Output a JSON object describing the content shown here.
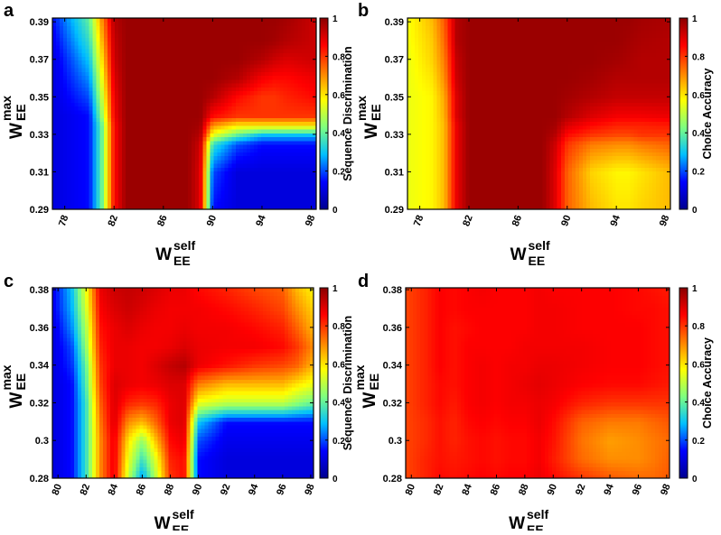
{
  "colorscale": {
    "name": "jet",
    "stops": [
      "#00008f",
      "#0000ff",
      "#00bfff",
      "#7fff7f",
      "#ffff00",
      "#ff8000",
      "#ff0000",
      "#8b0000"
    ]
  },
  "chart_data": [
    {
      "type": "heatmap",
      "panel_label": "a",
      "x_label_base": "W",
      "x_label_sup": "self",
      "x_label_sub": "EE",
      "y_label_base": "W",
      "y_label_sup": "max",
      "y_label_sub": "EE",
      "colorbar_label": "Sequence Discrimination",
      "xlim": [
        77,
        98.4
      ],
      "ylim": [
        0.29,
        0.392
      ],
      "x_ticks": [
        "78",
        "82",
        "86",
        "90",
        "94",
        "98"
      ],
      "y_ticks": [
        "0.29",
        "0.31",
        "0.33",
        "0.35",
        "0.37",
        "0.39"
      ],
      "clim": [
        0,
        1
      ],
      "colorbar_ticks": [
        "0",
        "0.2",
        "0.4",
        "0.6",
        "0.8",
        "1"
      ],
      "x": [
        77,
        80,
        81,
        82,
        83,
        88,
        89,
        90,
        92,
        94,
        95,
        96,
        98.4
      ],
      "y": [
        0.29,
        0.31,
        0.325,
        0.33,
        0.335,
        0.34,
        0.35,
        0.36,
        0.37,
        0.38,
        0.392
      ],
      "z": [
        [
          0.1,
          0.15,
          0.4,
          0.85,
          0.98,
          0.98,
          0.9,
          0.15,
          0.1,
          0.1,
          0.1,
          0.1,
          0.1
        ],
        [
          0.1,
          0.15,
          0.4,
          0.85,
          0.98,
          0.98,
          0.9,
          0.2,
          0.1,
          0.1,
          0.1,
          0.1,
          0.1
        ],
        [
          0.1,
          0.15,
          0.4,
          0.85,
          0.98,
          0.98,
          0.92,
          0.35,
          0.2,
          0.15,
          0.15,
          0.15,
          0.15
        ],
        [
          0.1,
          0.15,
          0.4,
          0.85,
          0.98,
          0.98,
          0.95,
          0.55,
          0.4,
          0.3,
          0.3,
          0.3,
          0.3
        ],
        [
          0.1,
          0.15,
          0.4,
          0.85,
          0.98,
          0.98,
          0.97,
          0.7,
          0.6,
          0.6,
          0.6,
          0.6,
          0.6
        ],
        [
          0.1,
          0.15,
          0.45,
          0.87,
          0.98,
          0.98,
          0.98,
          0.85,
          0.8,
          0.8,
          0.8,
          0.8,
          0.8
        ],
        [
          0.1,
          0.2,
          0.5,
          0.88,
          0.98,
          0.98,
          0.98,
          0.95,
          0.85,
          0.8,
          0.8,
          0.82,
          0.85
        ],
        [
          0.1,
          0.25,
          0.55,
          0.9,
          0.98,
          0.98,
          0.98,
          0.98,
          0.95,
          0.87,
          0.85,
          0.85,
          0.88
        ],
        [
          0.1,
          0.3,
          0.6,
          0.92,
          0.98,
          0.98,
          0.98,
          0.98,
          0.98,
          0.95,
          0.92,
          0.9,
          0.92
        ],
        [
          0.12,
          0.35,
          0.65,
          0.93,
          0.98,
          0.98,
          0.98,
          0.98,
          0.98,
          0.98,
          0.97,
          0.95,
          0.92
        ],
        [
          0.15,
          0.4,
          0.7,
          0.95,
          0.98,
          0.98,
          0.98,
          0.98,
          0.98,
          0.98,
          0.98,
          0.97,
          0.92
        ]
      ]
    },
    {
      "type": "heatmap",
      "panel_label": "b",
      "x_label_base": "W",
      "x_label_sup": "self",
      "x_label_sub": "EE",
      "y_label_base": "W",
      "y_label_sup": "max",
      "y_label_sub": "EE",
      "colorbar_label": "Choice Accuracy",
      "xlim": [
        77,
        98.4
      ],
      "ylim": [
        0.29,
        0.392
      ],
      "x_ticks": [
        "78",
        "82",
        "86",
        "90",
        "94",
        "98"
      ],
      "y_ticks": [
        "0.29",
        "0.31",
        "0.33",
        "0.35",
        "0.37",
        "0.39"
      ],
      "clim": [
        0,
        1
      ],
      "colorbar_ticks": [
        "0",
        "0.2",
        "0.4",
        "0.6",
        "0.8",
        "1"
      ],
      "x": [
        77,
        79,
        80,
        81,
        82,
        88,
        89,
        90,
        92,
        94,
        95,
        96,
        98.4
      ],
      "y": [
        0.29,
        0.31,
        0.325,
        0.33,
        0.335,
        0.34,
        0.35,
        0.36,
        0.37,
        0.38,
        0.392
      ],
      "z": [
        [
          0.55,
          0.58,
          0.65,
          0.88,
          0.98,
          0.98,
          0.9,
          0.75,
          0.65,
          0.6,
          0.6,
          0.62,
          0.65
        ],
        [
          0.55,
          0.58,
          0.65,
          0.88,
          0.98,
          0.98,
          0.9,
          0.75,
          0.62,
          0.58,
          0.58,
          0.6,
          0.65
        ],
        [
          0.55,
          0.58,
          0.65,
          0.88,
          0.98,
          0.98,
          0.92,
          0.8,
          0.72,
          0.7,
          0.7,
          0.72,
          0.75
        ],
        [
          0.55,
          0.58,
          0.65,
          0.88,
          0.98,
          0.98,
          0.95,
          0.85,
          0.8,
          0.78,
          0.78,
          0.8,
          0.8
        ],
        [
          0.55,
          0.58,
          0.65,
          0.88,
          0.98,
          0.98,
          0.97,
          0.9,
          0.85,
          0.82,
          0.82,
          0.82,
          0.83
        ],
        [
          0.55,
          0.58,
          0.66,
          0.9,
          0.98,
          0.98,
          0.98,
          0.95,
          0.9,
          0.87,
          0.87,
          0.87,
          0.88
        ],
        [
          0.55,
          0.58,
          0.67,
          0.9,
          0.98,
          0.98,
          0.98,
          0.97,
          0.95,
          0.93,
          0.93,
          0.93,
          0.93
        ],
        [
          0.55,
          0.6,
          0.7,
          0.92,
          0.98,
          0.98,
          0.98,
          0.98,
          0.97,
          0.95,
          0.95,
          0.95,
          0.95
        ],
        [
          0.55,
          0.62,
          0.72,
          0.93,
          0.98,
          0.98,
          0.98,
          0.98,
          0.98,
          0.97,
          0.96,
          0.95,
          0.95
        ],
        [
          0.56,
          0.63,
          0.74,
          0.95,
          0.98,
          0.98,
          0.98,
          0.98,
          0.98,
          0.98,
          0.97,
          0.96,
          0.95
        ],
        [
          0.56,
          0.65,
          0.76,
          0.95,
          0.98,
          0.98,
          0.98,
          0.98,
          0.98,
          0.98,
          0.98,
          0.97,
          0.96
        ]
      ]
    },
    {
      "type": "heatmap",
      "panel_label": "c",
      "x_label_base": "W",
      "x_label_sup": "self",
      "x_label_sub": "EE",
      "y_label_base": "W",
      "y_label_sup": "max",
      "y_label_sub": "EE",
      "colorbar_label": "Sequence Discrimination",
      "xlim": [
        79.6,
        98.2
      ],
      "ylim": [
        0.28,
        0.381
      ],
      "x_ticks": [
        "80",
        "82",
        "84",
        "86",
        "88",
        "90",
        "92",
        "94",
        "96",
        "98"
      ],
      "y_ticks": [
        "0.28",
        "0.3",
        "0.32",
        "0.34",
        "0.36",
        "0.38"
      ],
      "clim": [
        0,
        1
      ],
      "colorbar_ticks": [
        "0",
        "0.2",
        "0.4",
        "0.6",
        "0.8",
        "1"
      ],
      "x": [
        79.6,
        81,
        82,
        83,
        84,
        85,
        86,
        87,
        88,
        89,
        90,
        92,
        94,
        96,
        97,
        98.2
      ],
      "y": [
        0.28,
        0.29,
        0.3,
        0.31,
        0.32,
        0.33,
        0.34,
        0.35,
        0.36,
        0.37,
        0.381
      ],
      "z": [
        [
          0.1,
          0.15,
          0.35,
          0.7,
          0.88,
          0.5,
          0.25,
          0.5,
          0.8,
          0.85,
          0.15,
          0.1,
          0.1,
          0.1,
          0.1,
          0.1
        ],
        [
          0.1,
          0.15,
          0.35,
          0.7,
          0.88,
          0.55,
          0.35,
          0.55,
          0.82,
          0.85,
          0.15,
          0.1,
          0.1,
          0.1,
          0.1,
          0.1
        ],
        [
          0.1,
          0.15,
          0.35,
          0.7,
          0.88,
          0.6,
          0.45,
          0.65,
          0.85,
          0.88,
          0.2,
          0.12,
          0.12,
          0.12,
          0.12,
          0.12
        ],
        [
          0.1,
          0.15,
          0.35,
          0.72,
          0.9,
          0.7,
          0.65,
          0.75,
          0.88,
          0.9,
          0.3,
          0.15,
          0.15,
          0.15,
          0.15,
          0.15
        ],
        [
          0.1,
          0.15,
          0.35,
          0.75,
          0.9,
          0.82,
          0.8,
          0.82,
          0.88,
          0.9,
          0.55,
          0.5,
          0.5,
          0.5,
          0.45,
          0.4
        ],
        [
          0.1,
          0.15,
          0.38,
          0.78,
          0.9,
          0.88,
          0.87,
          0.88,
          0.9,
          0.9,
          0.72,
          0.65,
          0.65,
          0.65,
          0.6,
          0.55
        ],
        [
          0.1,
          0.18,
          0.4,
          0.8,
          0.88,
          0.88,
          0.87,
          0.9,
          0.93,
          0.95,
          0.88,
          0.84,
          0.8,
          0.78,
          0.75,
          0.65
        ],
        [
          0.1,
          0.2,
          0.45,
          0.82,
          0.88,
          0.88,
          0.87,
          0.87,
          0.88,
          0.9,
          0.88,
          0.87,
          0.87,
          0.85,
          0.8,
          0.7
        ],
        [
          0.1,
          0.25,
          0.48,
          0.84,
          0.88,
          0.9,
          0.88,
          0.87,
          0.87,
          0.88,
          0.87,
          0.87,
          0.85,
          0.82,
          0.75,
          0.65
        ],
        [
          0.12,
          0.28,
          0.52,
          0.86,
          0.9,
          0.92,
          0.9,
          0.88,
          0.87,
          0.87,
          0.87,
          0.85,
          0.82,
          0.78,
          0.7,
          0.62
        ],
        [
          0.12,
          0.3,
          0.55,
          0.88,
          0.92,
          0.93,
          0.92,
          0.9,
          0.88,
          0.88,
          0.85,
          0.82,
          0.78,
          0.75,
          0.65,
          0.58
        ]
      ]
    },
    {
      "type": "heatmap",
      "panel_label": "d",
      "x_label_base": "W",
      "x_label_sup": "self",
      "x_label_sub": "EE",
      "y_label_base": "W",
      "y_label_sup": "max",
      "y_label_sub": "EE",
      "colorbar_label": "Choice Accuracy",
      "xlim": [
        79.6,
        98.2
      ],
      "ylim": [
        0.28,
        0.381
      ],
      "x_ticks": [
        "80",
        "82",
        "84",
        "86",
        "88",
        "90",
        "92",
        "94",
        "96",
        "98"
      ],
      "y_ticks": [
        "0.28",
        "0.3",
        "0.32",
        "0.34",
        "0.36",
        "0.38"
      ],
      "clim": [
        0,
        1
      ],
      "colorbar_ticks": [
        "0",
        "0.2",
        "0.4",
        "0.6",
        "0.8",
        "1"
      ],
      "x": [
        79.6,
        81,
        82,
        83,
        84,
        85,
        86,
        87,
        88,
        89,
        90,
        92,
        94,
        96,
        97,
        98.2
      ],
      "y": [
        0.28,
        0.29,
        0.3,
        0.31,
        0.32,
        0.33,
        0.34,
        0.35,
        0.36,
        0.37,
        0.381
      ],
      "z": [
        [
          0.78,
          0.82,
          0.85,
          0.84,
          0.85,
          0.86,
          0.85,
          0.86,
          0.86,
          0.88,
          0.85,
          0.8,
          0.76,
          0.74,
          0.74,
          0.76
        ],
        [
          0.78,
          0.82,
          0.84,
          0.83,
          0.84,
          0.85,
          0.84,
          0.85,
          0.85,
          0.87,
          0.83,
          0.74,
          0.7,
          0.7,
          0.72,
          0.75
        ],
        [
          0.78,
          0.81,
          0.84,
          0.82,
          0.84,
          0.85,
          0.84,
          0.85,
          0.85,
          0.87,
          0.84,
          0.73,
          0.68,
          0.7,
          0.72,
          0.74
        ],
        [
          0.78,
          0.81,
          0.84,
          0.82,
          0.85,
          0.86,
          0.85,
          0.86,
          0.86,
          0.88,
          0.85,
          0.75,
          0.72,
          0.72,
          0.74,
          0.76
        ],
        [
          0.78,
          0.82,
          0.85,
          0.83,
          0.86,
          0.87,
          0.86,
          0.87,
          0.87,
          0.88,
          0.87,
          0.82,
          0.8,
          0.8,
          0.8,
          0.8
        ],
        [
          0.78,
          0.82,
          0.85,
          0.84,
          0.86,
          0.87,
          0.86,
          0.87,
          0.88,
          0.89,
          0.88,
          0.86,
          0.85,
          0.85,
          0.84,
          0.83
        ],
        [
          0.78,
          0.82,
          0.86,
          0.84,
          0.86,
          0.87,
          0.86,
          0.87,
          0.87,
          0.88,
          0.88,
          0.87,
          0.86,
          0.86,
          0.85,
          0.84
        ],
        [
          0.78,
          0.82,
          0.86,
          0.84,
          0.86,
          0.86,
          0.86,
          0.86,
          0.87,
          0.87,
          0.87,
          0.87,
          0.86,
          0.86,
          0.85,
          0.84
        ],
        [
          0.78,
          0.82,
          0.86,
          0.84,
          0.85,
          0.86,
          0.86,
          0.86,
          0.86,
          0.87,
          0.87,
          0.86,
          0.86,
          0.86,
          0.85,
          0.84
        ],
        [
          0.78,
          0.82,
          0.86,
          0.85,
          0.86,
          0.86,
          0.86,
          0.86,
          0.86,
          0.87,
          0.87,
          0.86,
          0.86,
          0.85,
          0.85,
          0.84
        ],
        [
          0.78,
          0.82,
          0.86,
          0.85,
          0.86,
          0.87,
          0.86,
          0.86,
          0.86,
          0.87,
          0.86,
          0.86,
          0.86,
          0.85,
          0.84,
          0.83
        ]
      ]
    }
  ]
}
